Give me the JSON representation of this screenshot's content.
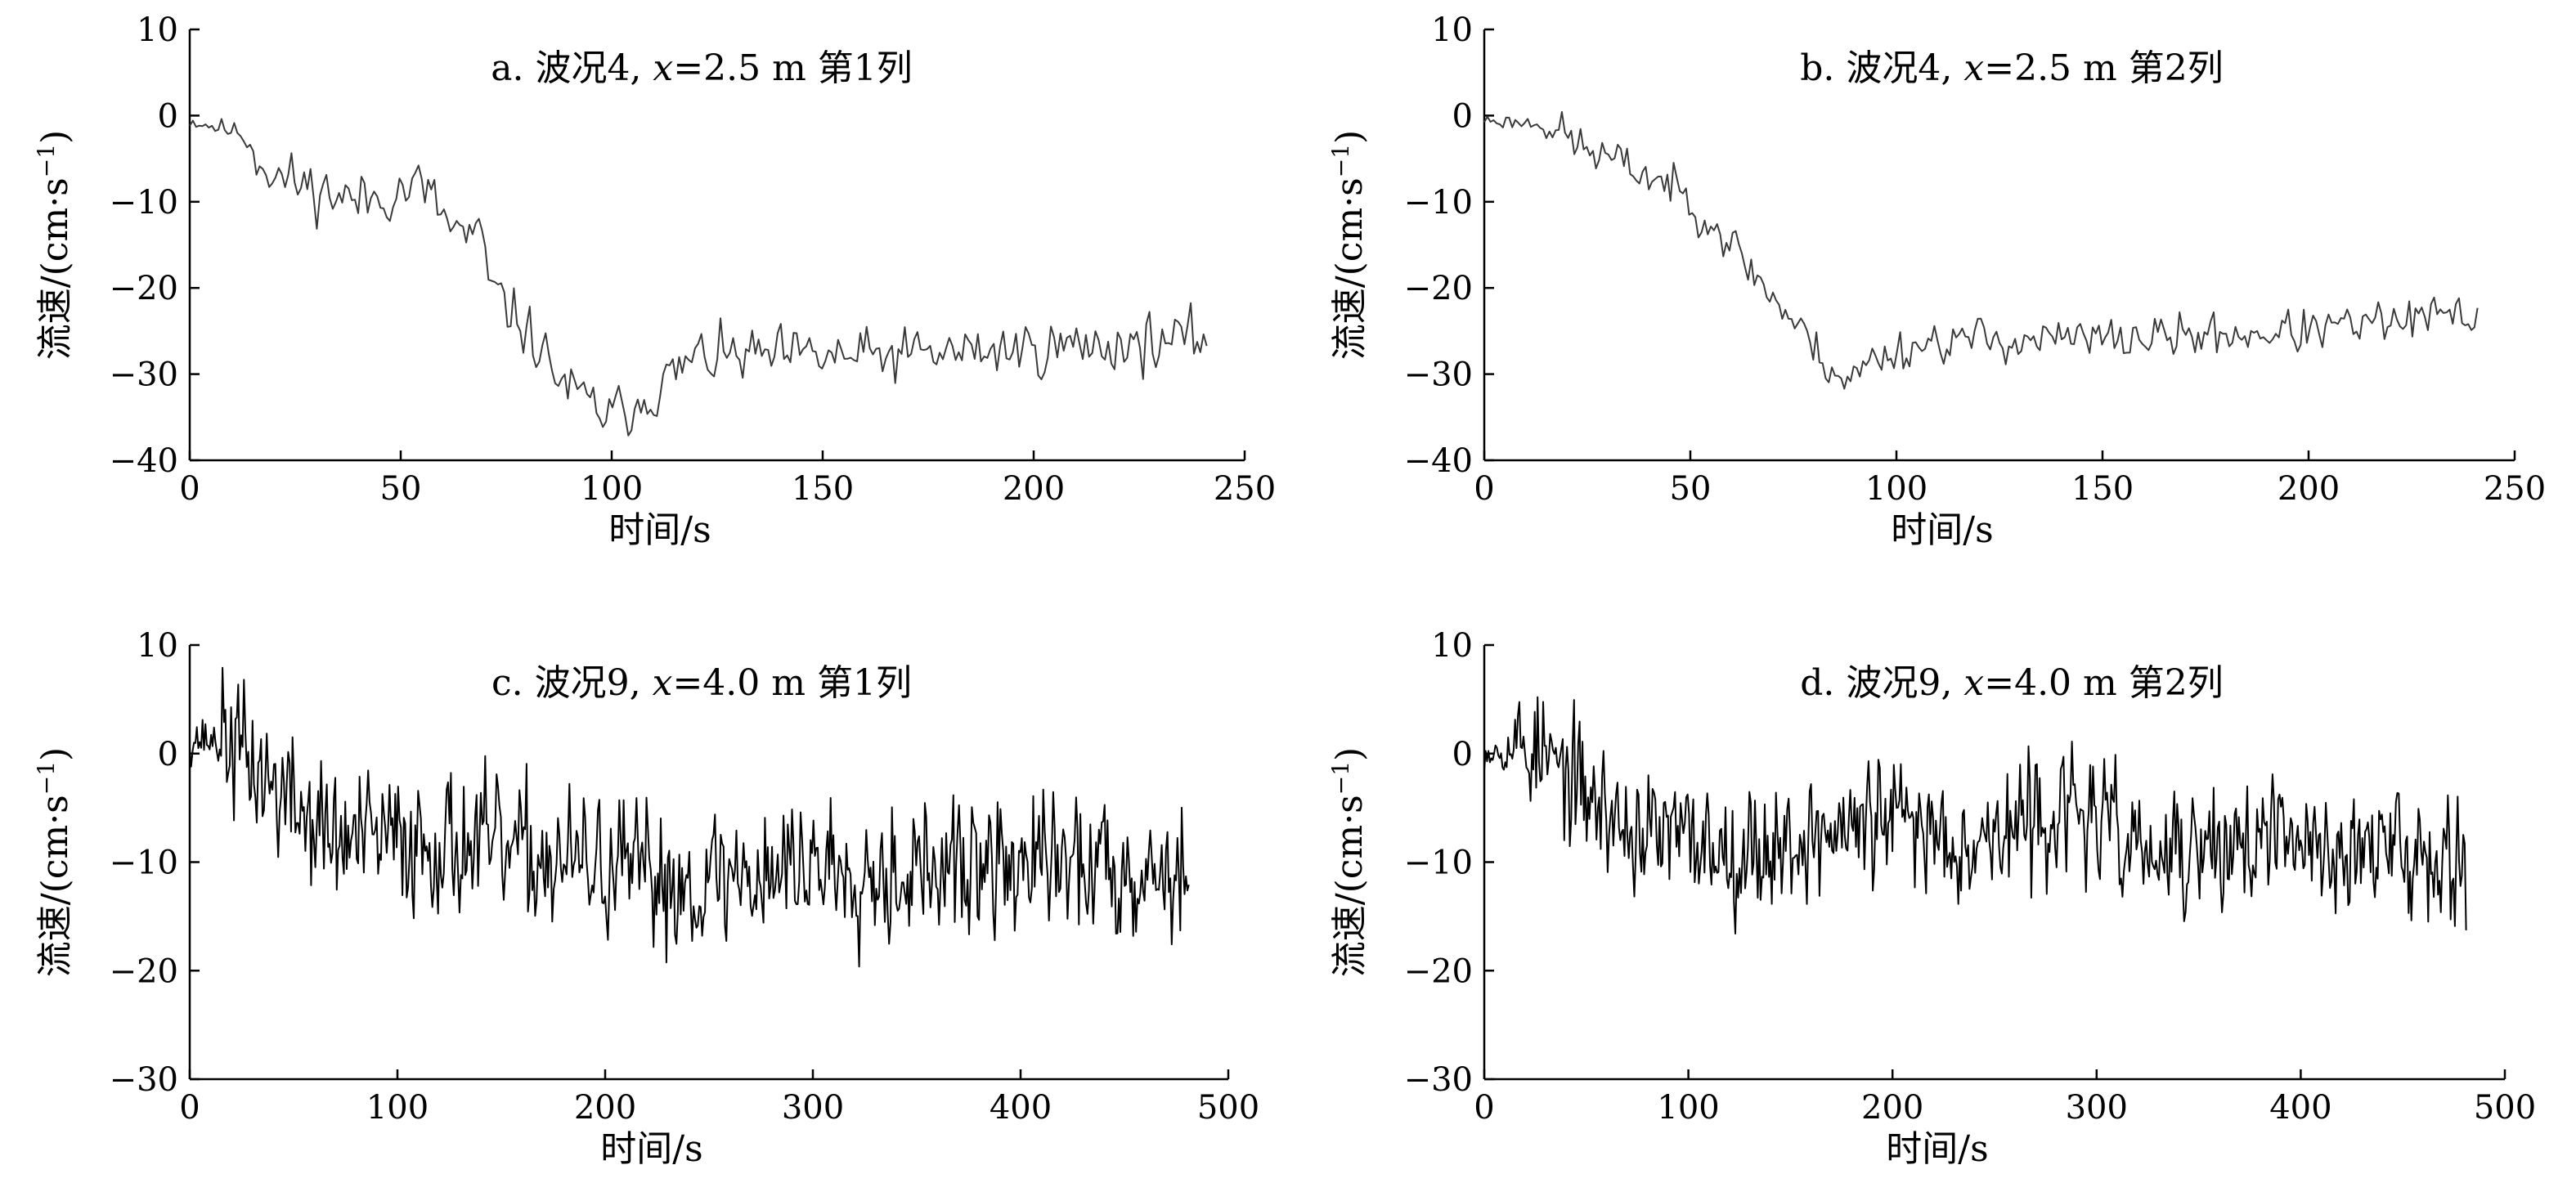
{
  "figure": {
    "panels": [
      {
        "title": "a. 波况4, x=2.5 m 第1列",
        "title_parts": [
          "a. 波况4, ",
          "x",
          "=2.5 m 第1列"
        ],
        "xlabel": "时间/s",
        "ylabel": "流速/(cm·s",
        "ylabel_sup": "−1",
        "ylabel_close": ")",
        "line_color": "#3a3a3a",
        "xlim": [
          0,
          250
        ],
        "ylim": [
          -40,
          10
        ],
        "xticks": [
          0,
          50,
          100,
          150,
          200,
          250
        ],
        "yticks": [
          -40,
          -30,
          -20,
          -10,
          0,
          10
        ],
        "x_end": 241,
        "n": 320,
        "seed": 11,
        "profile": [
          [
            0,
            -0.5
          ],
          [
            12,
            -2
          ],
          [
            20,
            -7
          ],
          [
            40,
            -10
          ],
          [
            55,
            -8
          ],
          [
            62,
            -13
          ],
          [
            70,
            -15
          ],
          [
            71,
            -20
          ],
          [
            80,
            -25
          ],
          [
            90,
            -32
          ],
          [
            100,
            -35
          ],
          [
            110,
            -32
          ],
          [
            120,
            -28
          ],
          [
            160,
            -28
          ],
          [
            200,
            -27
          ],
          [
            241,
            -26
          ]
        ],
        "noise": 2.6
      },
      {
        "title": "b. 波况4, x=2.5 m 第2列",
        "title_parts": [
          "b. 波况4, ",
          "x",
          "=2.5 m 第2列"
        ],
        "xlabel": "时间/s",
        "ylabel": "流速/(cm·s",
        "ylabel_sup": "−1",
        "ylabel_close": ")",
        "line_color": "#3a3a3a",
        "xlim": [
          0,
          250
        ],
        "ylim": [
          -40,
          10
        ],
        "xticks": [
          0,
          50,
          100,
          150,
          200,
          250
        ],
        "yticks": [
          -40,
          -30,
          -20,
          -10,
          0,
          10
        ],
        "x_end": 241,
        "n": 320,
        "seed": 23,
        "profile": [
          [
            0,
            -0.5
          ],
          [
            15,
            -1
          ],
          [
            25,
            -4
          ],
          [
            35,
            -6
          ],
          [
            45,
            -8
          ],
          [
            55,
            -12
          ],
          [
            65,
            -18
          ],
          [
            75,
            -24
          ],
          [
            82,
            -28
          ],
          [
            88,
            -31
          ],
          [
            95,
            -28
          ],
          [
            110,
            -26
          ],
          [
            150,
            -26
          ],
          [
            200,
            -25
          ],
          [
            241,
            -23
          ]
        ],
        "noise": 2.0
      },
      {
        "title": "c. 波况9, x=4.0 m 第1列",
        "title_parts": [
          "c. 波况9, ",
          "x",
          "=4.0 m 第1列"
        ],
        "xlabel": "时间/s",
        "ylabel": "流速/(cm·s",
        "ylabel_sup": "−1",
        "ylabel_close": ")",
        "line_color": "#000000",
        "xlim": [
          0,
          500
        ],
        "ylim": [
          -30,
          10
        ],
        "xticks": [
          0,
          100,
          200,
          300,
          400,
          500
        ],
        "yticks": [
          -30,
          -20,
          -10,
          0,
          10
        ],
        "x_end": 481,
        "n": 700,
        "seed": 37,
        "profile": [
          [
            0,
            1.5
          ],
          [
            20,
            1
          ],
          [
            40,
            -3
          ],
          [
            70,
            -8
          ],
          [
            120,
            -8
          ],
          [
            180,
            -10
          ],
          [
            240,
            -12
          ],
          [
            300,
            -10
          ],
          [
            360,
            -11
          ],
          [
            420,
            -10
          ],
          [
            481,
            -11
          ]
        ],
        "noise": 5.2
      },
      {
        "title": "d. 波况9, x=4.0 m 第2列",
        "title_parts": [
          "d. 波况9, ",
          "x",
          "=4.0 m 第2列"
        ],
        "xlabel": "时间/s",
        "ylabel": "流速/(cm·s",
        "ylabel_sup": "−1",
        "ylabel_close": ")",
        "line_color": "#000000",
        "xlim": [
          0,
          500
        ],
        "ylim": [
          -30,
          10
        ],
        "xticks": [
          0,
          100,
          200,
          300,
          400,
          500
        ],
        "yticks": [
          -30,
          -20,
          -10,
          0,
          10
        ],
        "x_end": 481,
        "n": 700,
        "seed": 53,
        "profile": [
          [
            0,
            0.5
          ],
          [
            25,
            0.5
          ],
          [
            45,
            -3
          ],
          [
            70,
            -7
          ],
          [
            130,
            -9
          ],
          [
            200,
            -6
          ],
          [
            240,
            -8
          ],
          [
            290,
            -5
          ],
          [
            330,
            -10
          ],
          [
            380,
            -8
          ],
          [
            430,
            -9
          ],
          [
            481,
            -9
          ]
        ],
        "noise": 4.6
      }
    ]
  },
  "chart_data": [
    {
      "type": "line",
      "title": "a. 波况4, x=2.5 m 第1列",
      "xlabel": "时间/s",
      "ylabel": "流速/(cm·s⁻¹)",
      "xlim": [
        0,
        250
      ],
      "ylim": [
        -40,
        10
      ],
      "series": [
        {
          "values_approx": {
            "x": [
              0,
              12,
              20,
              40,
              55,
              62,
              70,
              71,
              80,
              90,
              100,
              110,
              120,
              160,
              200,
              241
            ],
            "y": [
              -0.5,
              -2,
              -7,
              -10,
              -8,
              -13,
              -15,
              -20,
              -25,
              -32,
              -35,
              -32,
              -28,
              -28,
              -27,
              -26
            ]
          }
        }
      ],
      "grid": false
    },
    {
      "type": "line",
      "title": "b. 波况4, x=2.5 m 第2列",
      "xlabel": "时间/s",
      "ylabel": "流速/(cm·s⁻¹)",
      "xlim": [
        0,
        250
      ],
      "ylim": [
        -40,
        10
      ],
      "series": [
        {
          "values_approx": {
            "x": [
              0,
              15,
              25,
              35,
              45,
              55,
              65,
              75,
              82,
              88,
              95,
              110,
              150,
              200,
              241
            ],
            "y": [
              -0.5,
              -1,
              -4,
              -6,
              -8,
              -12,
              -18,
              -24,
              -28,
              -31,
              -28,
              -26,
              -26,
              -25,
              -23
            ]
          }
        }
      ],
      "grid": false
    },
    {
      "type": "line",
      "title": "c. 波况9, x=4.0 m 第1列",
      "xlabel": "时间/s",
      "ylabel": "流速/(cm·s⁻¹)",
      "xlim": [
        0,
        500
      ],
      "ylim": [
        -30,
        10
      ],
      "series": [
        {
          "values_approx": {
            "x": [
              0,
              20,
              40,
              70,
              120,
              180,
              240,
              300,
              360,
              420,
              481
            ],
            "y": [
              1.5,
              1,
              -3,
              -8,
              -8,
              -10,
              -12,
              -10,
              -11,
              -10,
              -11
            ]
          }
        }
      ],
      "grid": false
    },
    {
      "type": "line",
      "title": "d. 波况9, x=4.0 m 第2列",
      "xlabel": "时间/s",
      "ylabel": "流速/(cm·s⁻¹)",
      "xlim": [
        0,
        500
      ],
      "ylim": [
        -30,
        10
      ],
      "series": [
        {
          "values_approx": {
            "x": [
              0,
              25,
              45,
              70,
              130,
              200,
              240,
              290,
              330,
              380,
              430,
              481
            ],
            "y": [
              0.5,
              0.5,
              -3,
              -7,
              -9,
              -6,
              -8,
              -5,
              -10,
              -8,
              -9,
              -9
            ]
          }
        }
      ],
      "grid": false
    }
  ]
}
